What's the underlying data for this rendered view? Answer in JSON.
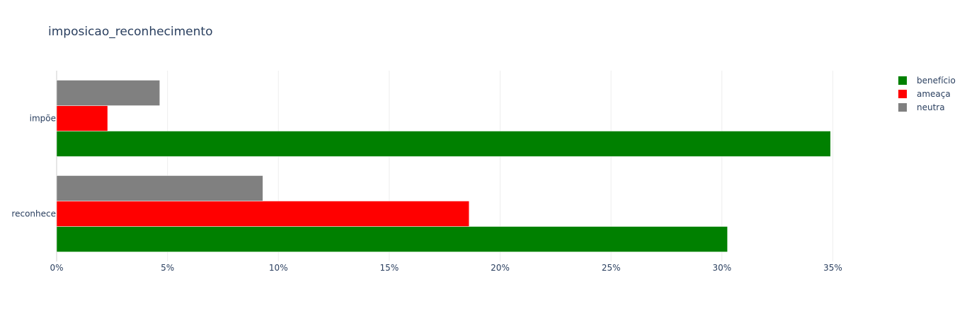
{
  "chart_data": {
    "type": "bar",
    "orientation": "horizontal",
    "title": "imposicao_reconhecimento",
    "categories": [
      "impõe",
      "reconhece"
    ],
    "series": [
      {
        "name": "benefício",
        "color": "#008000",
        "values": [
          34.9,
          30.25
        ]
      },
      {
        "name": "ameaça",
        "color": "#ff0000",
        "values": [
          2.3,
          18.6
        ]
      },
      {
        "name": "neutra",
        "color": "#808080",
        "values": [
          4.65,
          9.3
        ]
      }
    ],
    "xlim": [
      0,
      36.2
    ],
    "xticks": [
      0,
      5,
      10,
      15,
      20,
      25,
      30,
      35
    ],
    "xtick_labels": [
      "0%",
      "5%",
      "10%",
      "15%",
      "20%",
      "25%",
      "30%",
      "35%"
    ],
    "grid": true,
    "legend_position": "top-right"
  }
}
